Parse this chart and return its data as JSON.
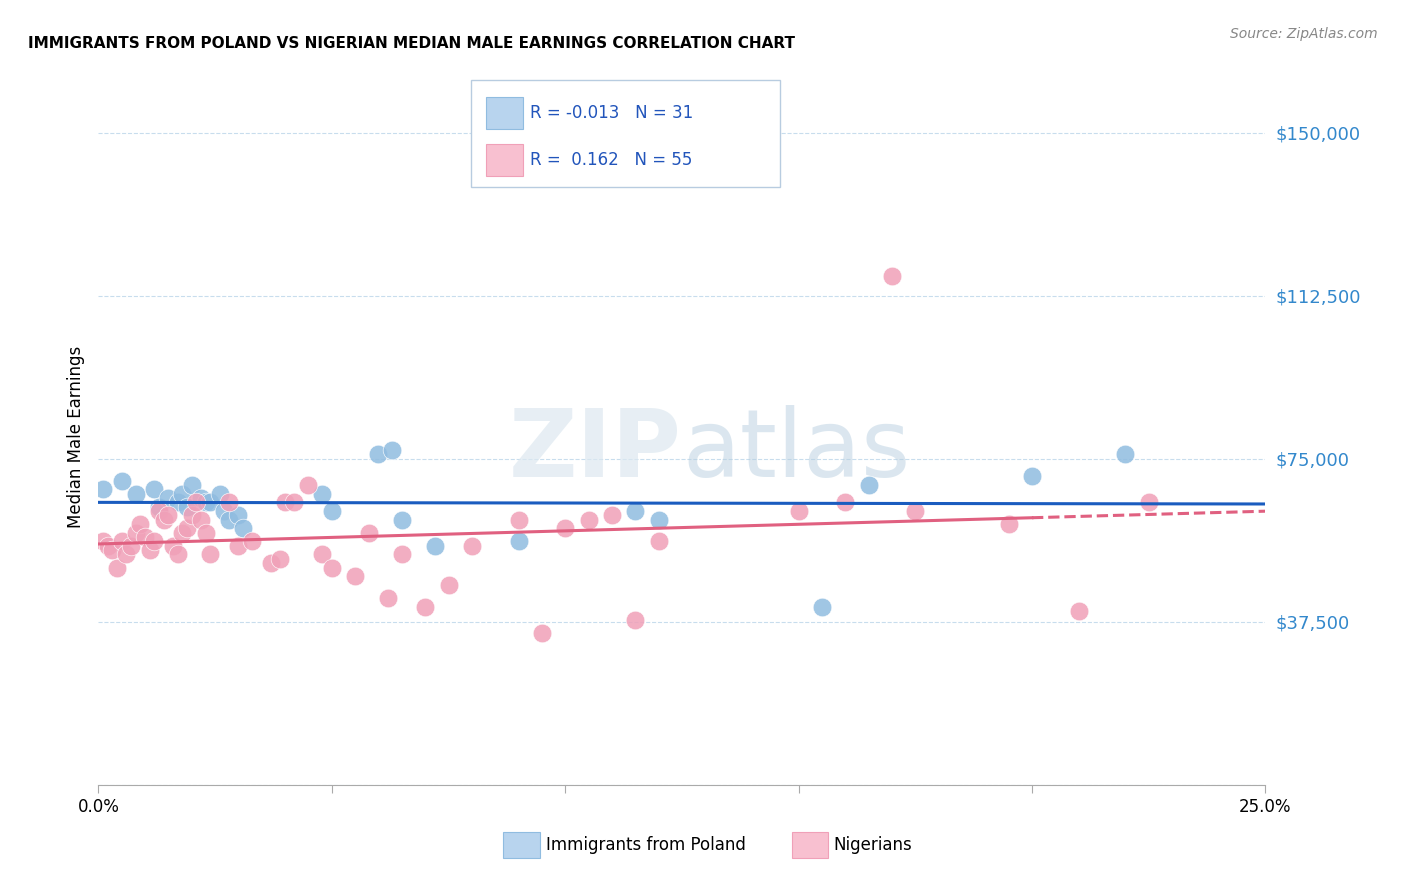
{
  "title": "IMMIGRANTS FROM POLAND VS NIGERIAN MEDIAN MALE EARNINGS CORRELATION CHART",
  "source": "Source: ZipAtlas.com",
  "ylabel": "Median Male Earnings",
  "xmin": 0.0,
  "xmax": 0.25,
  "ymin": 0,
  "ymax": 160000,
  "poland_R": -0.013,
  "nigeria_R": 0.162,
  "poland_color": "#90bce0",
  "nigeria_color": "#f0a0b8",
  "poland_line_color": "#1a5cbf",
  "nigeria_line_color": "#e06080",
  "background_color": "#ffffff",
  "watermark_text": "ZIPatlas",
  "poland_x": [
    0.001,
    0.005,
    0.008,
    0.012,
    0.013,
    0.015,
    0.017,
    0.018,
    0.019,
    0.02,
    0.022,
    0.023,
    0.024,
    0.026,
    0.027,
    0.028,
    0.03,
    0.031,
    0.048,
    0.05,
    0.06,
    0.063,
    0.065,
    0.072,
    0.09,
    0.115,
    0.12,
    0.155,
    0.165,
    0.2,
    0.22
  ],
  "poland_y": [
    68000,
    70000,
    67000,
    68000,
    64000,
    66000,
    65000,
    67000,
    64000,
    69000,
    66000,
    65000,
    65000,
    67000,
    63000,
    61000,
    62000,
    59000,
    67000,
    63000,
    76000,
    77000,
    61000,
    55000,
    56000,
    63000,
    61000,
    41000,
    69000,
    71000,
    76000
  ],
  "nigeria_x": [
    0.001,
    0.002,
    0.003,
    0.004,
    0.005,
    0.006,
    0.007,
    0.008,
    0.009,
    0.01,
    0.011,
    0.012,
    0.013,
    0.014,
    0.015,
    0.016,
    0.017,
    0.018,
    0.019,
    0.02,
    0.021,
    0.022,
    0.023,
    0.024,
    0.028,
    0.03,
    0.033,
    0.037,
    0.039,
    0.04,
    0.042,
    0.045,
    0.048,
    0.05,
    0.055,
    0.058,
    0.062,
    0.065,
    0.07,
    0.075,
    0.08,
    0.09,
    0.095,
    0.1,
    0.105,
    0.11,
    0.115,
    0.12,
    0.15,
    0.16,
    0.17,
    0.175,
    0.195,
    0.21,
    0.225
  ],
  "nigeria_y": [
    56000,
    55000,
    54000,
    50000,
    56000,
    53000,
    55000,
    58000,
    60000,
    57000,
    54000,
    56000,
    63000,
    61000,
    62000,
    55000,
    53000,
    58000,
    59000,
    62000,
    65000,
    61000,
    58000,
    53000,
    65000,
    55000,
    56000,
    51000,
    52000,
    65000,
    65000,
    69000,
    53000,
    50000,
    48000,
    58000,
    43000,
    53000,
    41000,
    46000,
    55000,
    61000,
    35000,
    59000,
    61000,
    62000,
    38000,
    56000,
    63000,
    65000,
    117000,
    63000,
    60000,
    40000,
    65000
  ],
  "ytick_vals": [
    0,
    37500,
    75000,
    112500,
    150000
  ],
  "ytick_labels": [
    "",
    "$37,500",
    "$75,000",
    "$112,500",
    "$150,000"
  ],
  "xtick_positions": [
    0.0,
    0.05,
    0.1,
    0.15,
    0.2,
    0.25
  ]
}
